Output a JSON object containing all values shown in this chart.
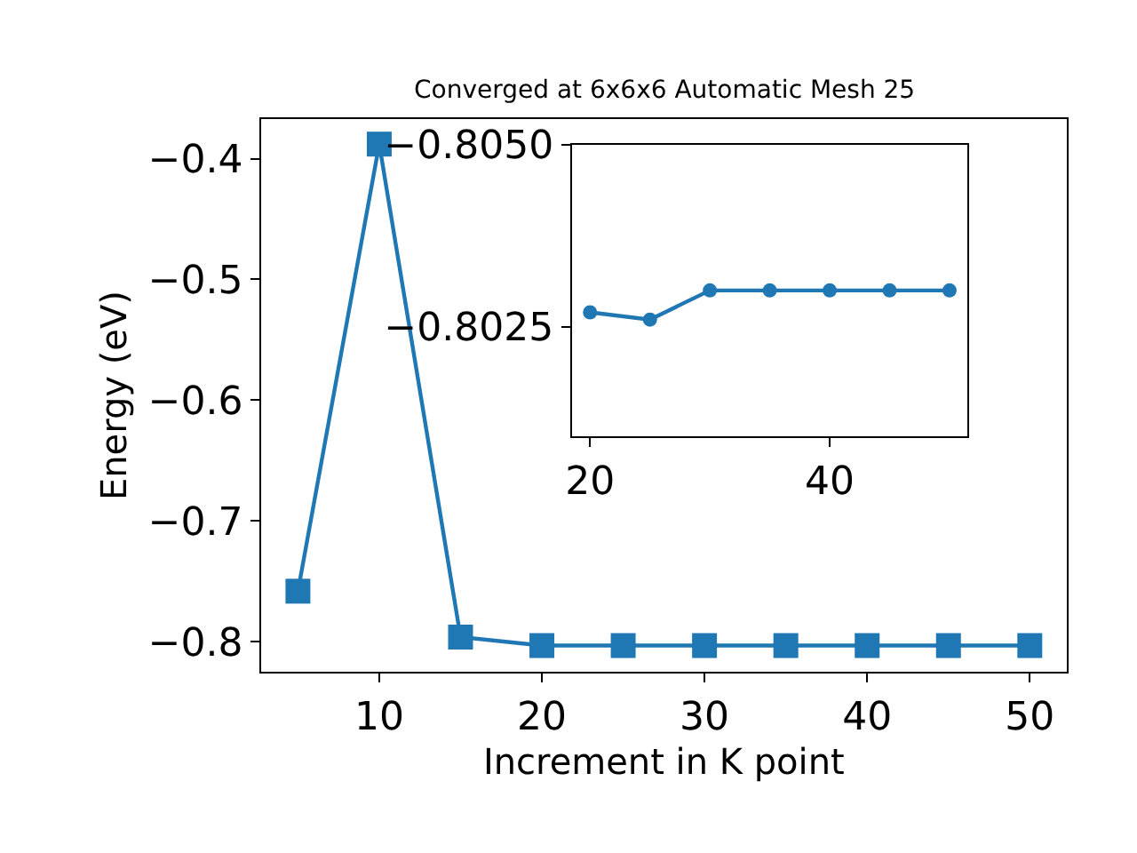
{
  "chart_data": [
    {
      "type": "line",
      "title": "Converged at 6x6x6 Automatic Mesh 25",
      "xlabel": "Increment in K point",
      "ylabel": "Energy (eV)",
      "x": [
        5,
        10,
        15,
        20,
        25,
        30,
        35,
        40,
        45,
        50
      ],
      "series": [
        {
          "color": "#1f77b4",
          "values": [
            -0.758,
            -0.388,
            -0.796,
            -0.803,
            -0.803,
            -0.803,
            -0.803,
            -0.803,
            -0.803,
            -0.803
          ]
        }
      ],
      "xlim": [
        2.75,
        52.25
      ],
      "ylim": [
        -0.825,
        -0.367
      ],
      "xticks": [
        10,
        20,
        30,
        40,
        50
      ],
      "yticks": [
        -0.8,
        -0.7,
        -0.6,
        -0.5,
        -0.4
      ],
      "marker": "square"
    },
    {
      "type": "line",
      "x": [
        20,
        25,
        30,
        35,
        40,
        45,
        50
      ],
      "series": [
        {
          "color": "#1f77b4",
          "values": [
            -0.8027,
            -0.8026,
            -0.803,
            -0.803,
            -0.803,
            -0.803,
            -0.803
          ]
        }
      ],
      "xlim": [
        18.5,
        51.5
      ],
      "ylim": [
        -0.801,
        -0.805
      ],
      "xticks": [
        20,
        40
      ],
      "yticks": [
        {
          "value": -0.805,
          "label": "−0.8050"
        },
        {
          "value": -0.8025,
          "label": "−0.8025"
        }
      ],
      "marker": "circle"
    }
  ]
}
